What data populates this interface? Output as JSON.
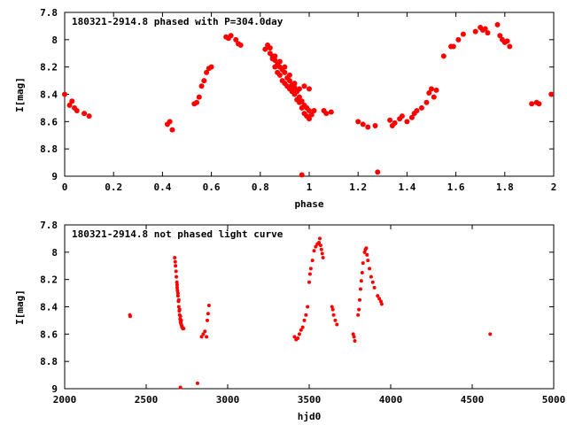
{
  "colors": {
    "points": "#ff0000",
    "axes": "#000000",
    "background": "#ffffff"
  },
  "chart_data": [
    {
      "type": "scatter",
      "title": "180321-2914.8 phased with P=304.0day",
      "xlabel": "phase",
      "ylabel": "I[mag]",
      "xlim": [
        0,
        2
      ],
      "ylim": [
        7.8,
        9
      ],
      "y_inverted": true,
      "grid": false,
      "legend": "none",
      "xticks": [
        0,
        0.2,
        0.4,
        0.6,
        0.8,
        1,
        1.2,
        1.4,
        1.6,
        1.8,
        2
      ],
      "xtick_labels": [
        "0",
        "0.2",
        "0.4",
        "0.6",
        "0.8",
        "1",
        "1.2",
        "1.4",
        "1.6",
        "1.8",
        "2"
      ],
      "yticks": [
        7.8,
        8,
        8.2,
        8.4,
        8.6,
        8.8,
        9
      ],
      "ytick_labels": [
        "7.8",
        "8",
        "8.2",
        "8.4",
        "8.6",
        "8.8",
        "9"
      ],
      "series": [
        {
          "points": [
            [
              0.0,
              8.4
            ],
            [
              0.02,
              8.48
            ],
            [
              0.03,
              8.45
            ],
            [
              0.04,
              8.5
            ],
            [
              0.05,
              8.52
            ],
            [
              0.08,
              8.54
            ],
            [
              0.1,
              8.56
            ],
            [
              0.42,
              8.62
            ],
            [
              0.43,
              8.6
            ],
            [
              0.44,
              8.66
            ],
            [
              0.53,
              8.47
            ],
            [
              0.54,
              8.46
            ],
            [
              0.55,
              8.42
            ],
            [
              0.56,
              8.34
            ],
            [
              0.57,
              8.3
            ],
            [
              0.58,
              8.24
            ],
            [
              0.59,
              8.21
            ],
            [
              0.6,
              8.2
            ],
            [
              0.66,
              7.98
            ],
            [
              0.67,
              7.99
            ],
            [
              0.68,
              7.97
            ],
            [
              0.7,
              8.0
            ],
            [
              0.71,
              8.03
            ],
            [
              0.72,
              8.04
            ],
            [
              0.82,
              8.07
            ],
            [
              0.83,
              8.04
            ],
            [
              0.84,
              8.1
            ],
            [
              0.85,
              8.12
            ],
            [
              0.86,
              8.15
            ],
            [
              0.87,
              8.18
            ],
            [
              0.88,
              8.2
            ],
            [
              0.89,
              8.22
            ],
            [
              0.9,
              8.24
            ],
            [
              0.91,
              8.28
            ],
            [
              0.92,
              8.3
            ],
            [
              0.93,
              8.33
            ],
            [
              0.94,
              8.35
            ],
            [
              0.95,
              8.38
            ],
            [
              0.96,
              8.42
            ],
            [
              0.97,
              8.45
            ],
            [
              0.98,
              8.48
            ],
            [
              0.99,
              8.5
            ],
            [
              1.0,
              8.52
            ],
            [
              1.01,
              8.55
            ],
            [
              1.02,
              8.52
            ],
            [
              0.86,
              8.2
            ],
            [
              0.88,
              8.26
            ],
            [
              0.9,
              8.32
            ],
            [
              0.92,
              8.36
            ],
            [
              0.94,
              8.4
            ],
            [
              0.96,
              8.46
            ],
            [
              0.98,
              8.54
            ],
            [
              1.0,
              8.58
            ],
            [
              0.87,
              8.24
            ],
            [
              0.89,
              8.3
            ],
            [
              0.91,
              8.34
            ],
            [
              0.93,
              8.38
            ],
            [
              0.95,
              8.44
            ],
            [
              0.97,
              8.5
            ],
            [
              0.99,
              8.56
            ],
            [
              0.84,
              8.06
            ],
            [
              0.85,
              8.14
            ],
            [
              0.86,
              8.12
            ],
            [
              0.88,
              8.16
            ],
            [
              0.9,
              8.2
            ],
            [
              0.92,
              8.26
            ],
            [
              0.94,
              8.32
            ],
            [
              0.96,
              8.36
            ],
            [
              0.98,
              8.34
            ],
            [
              1.0,
              8.36
            ],
            [
              0.97,
              8.99
            ],
            [
              1.06,
              8.52
            ],
            [
              1.07,
              8.54
            ],
            [
              1.09,
              8.53
            ],
            [
              1.2,
              8.6
            ],
            [
              1.22,
              8.62
            ],
            [
              1.24,
              8.64
            ],
            [
              1.27,
              8.63
            ],
            [
              1.28,
              8.97
            ],
            [
              1.33,
              8.59
            ],
            [
              1.34,
              8.63
            ],
            [
              1.35,
              8.61
            ],
            [
              1.37,
              8.58
            ],
            [
              1.38,
              8.56
            ],
            [
              1.4,
              8.6
            ],
            [
              1.42,
              8.57
            ],
            [
              1.43,
              8.54
            ],
            [
              1.44,
              8.52
            ],
            [
              1.46,
              8.5
            ],
            [
              1.48,
              8.46
            ],
            [
              1.49,
              8.39
            ],
            [
              1.5,
              8.36
            ],
            [
              1.51,
              8.42
            ],
            [
              1.52,
              8.37
            ],
            [
              1.55,
              8.12
            ],
            [
              1.58,
              8.05
            ],
            [
              1.59,
              8.05
            ],
            [
              1.61,
              8.0
            ],
            [
              1.63,
              7.96
            ],
            [
              1.68,
              7.94
            ],
            [
              1.7,
              7.91
            ],
            [
              1.71,
              7.93
            ],
            [
              1.72,
              7.92
            ],
            [
              1.73,
              7.95
            ],
            [
              1.77,
              7.89
            ],
            [
              1.78,
              7.97
            ],
            [
              1.79,
              8.0
            ],
            [
              1.8,
              8.02
            ],
            [
              1.81,
              8.01
            ],
            [
              1.82,
              8.05
            ],
            [
              1.91,
              8.47
            ],
            [
              1.93,
              8.46
            ],
            [
              1.94,
              8.47
            ],
            [
              1.99,
              8.4
            ]
          ]
        }
      ]
    },
    {
      "type": "scatter",
      "title": "180321-2914.8 not phased light curve",
      "xlabel": "hjd0",
      "ylabel": "I[mag]",
      "xlim": [
        2000,
        5000
      ],
      "ylim": [
        7.8,
        9
      ],
      "y_inverted": true,
      "grid": false,
      "legend": "none",
      "xticks": [
        2000,
        2500,
        3000,
        3500,
        4000,
        4500,
        5000
      ],
      "xtick_labels": [
        "2000",
        "2500",
        "3000",
        "3500",
        "4000",
        "4500",
        "5000"
      ],
      "yticks": [
        7.8,
        8,
        8.2,
        8.4,
        8.6,
        8.8,
        9
      ],
      "ytick_labels": [
        "7.8",
        "8",
        "8.2",
        "8.4",
        "8.6",
        "8.8",
        "9"
      ],
      "series": [
        {
          "points": [
            [
              2400,
              8.46
            ],
            [
              2402,
              8.47
            ],
            [
              2675,
              8.04
            ],
            [
              2678,
              8.07
            ],
            [
              2680,
              8.1
            ],
            [
              2683,
              8.14
            ],
            [
              2685,
              8.18
            ],
            [
              2688,
              8.22
            ],
            [
              2690,
              8.26
            ],
            [
              2692,
              8.28
            ],
            [
              2695,
              8.32
            ],
            [
              2698,
              8.36
            ],
            [
              2700,
              8.4
            ],
            [
              2703,
              8.43
            ],
            [
              2705,
              8.46
            ],
            [
              2708,
              8.49
            ],
            [
              2710,
              8.51
            ],
            [
              2713,
              8.52
            ],
            [
              2715,
              8.53
            ],
            [
              2718,
              8.54
            ],
            [
              2720,
              8.55
            ],
            [
              2725,
              8.56
            ],
            [
              2730,
              8.56
            ],
            [
              2690,
              8.24
            ],
            [
              2695,
              8.3
            ],
            [
              2700,
              8.35
            ],
            [
              2705,
              8.42
            ],
            [
              2710,
              8.47
            ],
            [
              2715,
              8.5
            ],
            [
              2710,
              8.99
            ],
            [
              2815,
              8.96
            ],
            [
              2840,
              8.62
            ],
            [
              2850,
              8.6
            ],
            [
              2860,
              8.58
            ],
            [
              2870,
              8.62
            ],
            [
              2875,
              8.5
            ],
            [
              2880,
              8.45
            ],
            [
              2885,
              8.39
            ],
            [
              3410,
              8.62
            ],
            [
              3420,
              8.64
            ],
            [
              3430,
              8.63
            ],
            [
              3440,
              8.6
            ],
            [
              3450,
              8.57
            ],
            [
              3460,
              8.55
            ],
            [
              3470,
              8.5
            ],
            [
              3480,
              8.46
            ],
            [
              3490,
              8.4
            ],
            [
              3500,
              8.22
            ],
            [
              3505,
              8.16
            ],
            [
              3510,
              8.12
            ],
            [
              3520,
              8.06
            ],
            [
              3530,
              7.99
            ],
            [
              3540,
              7.96
            ],
            [
              3550,
              7.94
            ],
            [
              3560,
              7.93
            ],
            [
              3565,
              7.9
            ],
            [
              3570,
              7.95
            ],
            [
              3575,
              7.98
            ],
            [
              3580,
              8.01
            ],
            [
              3585,
              8.04
            ],
            [
              3640,
              8.4
            ],
            [
              3645,
              8.42
            ],
            [
              3650,
              8.46
            ],
            [
              3660,
              8.5
            ],
            [
              3670,
              8.53
            ],
            [
              3770,
              8.6
            ],
            [
              3775,
              8.62
            ],
            [
              3780,
              8.65
            ],
            [
              3800,
              8.46
            ],
            [
              3805,
              8.42
            ],
            [
              3810,
              8.35
            ],
            [
              3815,
              8.27
            ],
            [
              3820,
              8.21
            ],
            [
              3825,
              8.15
            ],
            [
              3830,
              8.08
            ],
            [
              3840,
              8.0
            ],
            [
              3845,
              7.98
            ],
            [
              3850,
              7.97
            ],
            [
              3855,
              8.02
            ],
            [
              3860,
              8.06
            ],
            [
              3870,
              8.12
            ],
            [
              3880,
              8.18
            ],
            [
              3890,
              8.22
            ],
            [
              3900,
              8.26
            ],
            [
              3920,
              8.32
            ],
            [
              3930,
              8.34
            ],
            [
              3940,
              8.36
            ],
            [
              3945,
              8.38
            ],
            [
              4610,
              8.6
            ]
          ]
        }
      ]
    }
  ]
}
